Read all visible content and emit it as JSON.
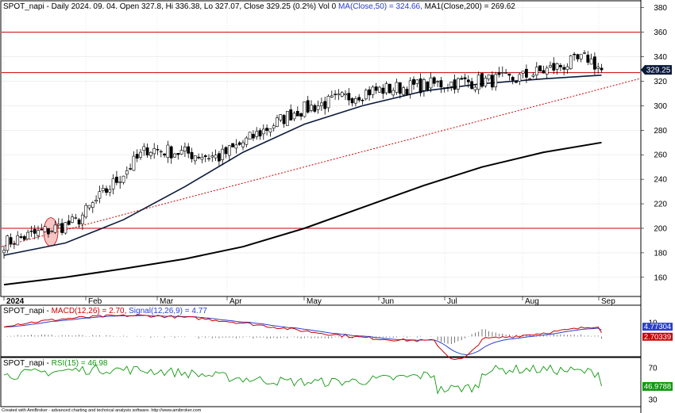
{
  "header": {
    "main": "SPOT_napi - Daily 2024. 09. 04. Open 327.8, Hi 336.38, Lo 327.07, Close 329.25 (0.2%) Vol 0",
    "ma50": "MA(Close,50) = 324.66,",
    "ma200": "MA1(Close,200) = 269.62"
  },
  "macd_header": {
    "prefix": "SPOT_napi - ",
    "macd": "MACD(12,26) = 2.70,",
    "signal": "Signal(12,26,9) = 4.77"
  },
  "rsi_header": {
    "prefix": "SPOT_napi - ",
    "rsi": "RSI(15) = 46.98"
  },
  "footer": "Created with AmiBroker - advanced charting and technical analysis software. http://www.amibroker.com",
  "colors": {
    "ma50": "#0a1a3a",
    "ma200": "#000000",
    "level": "#cc0000",
    "trend": "#cc0000",
    "macd": "#cc0000",
    "signal": "#2a3fd0",
    "rsi": "#119911",
    "highlight": "#f4b8b8"
  },
  "chart_data": [
    {
      "type": "candlestick",
      "panel": "price",
      "ylim": [
        145,
        385
      ],
      "y_ticks": [
        160,
        180,
        200,
        220,
        240,
        260,
        280,
        300,
        320,
        340,
        360,
        380
      ],
      "x_labels": [
        "2024",
        "Feb",
        "Mar",
        "Apr",
        "May",
        "Jun",
        "Jul",
        "Aug",
        "Sep"
      ],
      "last_close_label": "329.25",
      "horizontal_levels": [
        360,
        327,
        200
      ],
      "trendline": {
        "start": {
          "date": "2024-01-02",
          "value": 185
        },
        "end": {
          "date": "2024-09-20",
          "value": 322
        }
      },
      "ma50": {
        "start": 178,
        "waypoints": [
          [
            20,
            188
          ],
          [
            40,
            207
          ],
          [
            60,
            234
          ],
          [
            80,
            262
          ],
          [
            100,
            285
          ],
          [
            120,
            300
          ],
          [
            140,
            312
          ],
          [
            160,
            318
          ],
          [
            180,
            322
          ],
          [
            200,
            325
          ]
        ]
      },
      "ma200": {
        "start": 154,
        "waypoints": [
          [
            20,
            160
          ],
          [
            40,
            167
          ],
          [
            60,
            175
          ],
          [
            80,
            185
          ],
          [
            100,
            200
          ],
          [
            120,
            217
          ],
          [
            140,
            235
          ],
          [
            160,
            250
          ],
          [
            180,
            262
          ],
          [
            200,
            270
          ]
        ]
      },
      "candles_summary": [
        {
          "month": "Jan",
          "open": 188,
          "close": 205,
          "high": 208,
          "low": 184
        },
        {
          "month": "Feb",
          "open": 205,
          "close": 265,
          "high": 272,
          "low": 200
        },
        {
          "month": "Mar",
          "open": 265,
          "close": 258,
          "high": 273,
          "low": 250
        },
        {
          "month": "Apr",
          "open": 258,
          "close": 295,
          "high": 318,
          "low": 270
        },
        {
          "month": "May",
          "open": 295,
          "close": 312,
          "high": 328,
          "low": 285
        },
        {
          "month": "Jun",
          "open": 312,
          "close": 318,
          "high": 330,
          "low": 303
        },
        {
          "month": "Jul",
          "open": 318,
          "close": 322,
          "high": 348,
          "low": 290
        },
        {
          "month": "Aug",
          "open": 322,
          "close": 339,
          "high": 359,
          "low": 300
        },
        {
          "month": "Sep",
          "open": 327.8,
          "close": 329.25,
          "high": 336.38,
          "low": 327.07
        }
      ]
    },
    {
      "type": "line",
      "panel": "macd",
      "ylim": [
        -14,
        22
      ],
      "y_ticks": [
        0,
        10
      ],
      "series": [
        {
          "name": "MACD(12,26)",
          "last_label": "2.70339"
        },
        {
          "name": "Signal(12,26,9)",
          "last_label": "4.77304"
        }
      ]
    },
    {
      "type": "line",
      "panel": "rsi",
      "ylim": [
        22,
        82
      ],
      "y_ticks": [
        30,
        70
      ],
      "series": [
        {
          "name": "RSI(15)",
          "last_label": "46.9788"
        }
      ]
    }
  ]
}
